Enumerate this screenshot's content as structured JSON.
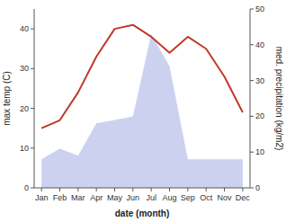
{
  "chart_data": {
    "type": "line",
    "categories": [
      "Jan",
      "Feb",
      "Mar",
      "Apr",
      "May",
      "Jun",
      "Jul",
      "Aug",
      "Sep",
      "Oct",
      "Nov",
      "Dec"
    ],
    "xlabel": "date (month)",
    "ylabel": "max temp (C)",
    "y2label": "med. precipitation (kg/m2)",
    "ylim": [
      0,
      45
    ],
    "yticks": [
      0,
      10,
      20,
      30,
      40
    ],
    "y2lim": [
      0,
      50
    ],
    "y2ticks": [
      0,
      10,
      20,
      30,
      40,
      50
    ],
    "series": [
      {
        "type": "area",
        "axis": "y2",
        "color": "#b0b8e8",
        "values": [
          8,
          11,
          9,
          18,
          19,
          20,
          43,
          34,
          8,
          8,
          8,
          8
        ]
      },
      {
        "type": "line",
        "color": "#c0392b",
        "values": [
          15,
          17,
          24,
          33,
          40,
          41,
          38,
          34,
          38,
          35,
          28,
          19
        ]
      }
    ]
  }
}
